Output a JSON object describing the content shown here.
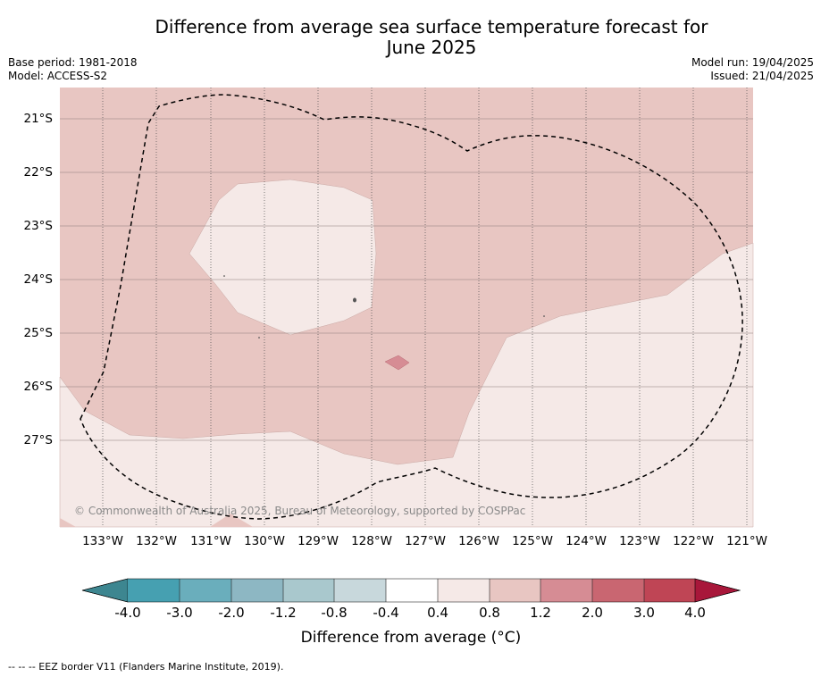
{
  "title_line1": "Difference from average sea surface temperature forecast for",
  "title_line2": "June 2025",
  "meta_left": [
    "Base period: 1981-2018",
    "Model: ACCESS-S2"
  ],
  "meta_right": [
    "Model run: 19/04/2025",
    "Issued: 21/04/2025"
  ],
  "latitude_labels": [
    "21°S",
    "22°S",
    "23°S",
    "24°S",
    "25°S",
    "26°S",
    "27°S"
  ],
  "longitude_labels": [
    "133°W",
    "132°W",
    "131°W",
    "130°W",
    "129°W",
    "128°W",
    "127°W",
    "126°W",
    "125°W",
    "124°W",
    "123°W",
    "122°W",
    "121°W"
  ],
  "copyright": "© Commonwealth of Australia 2025, Bureau of Meteorology, supported by COSPPac",
  "colorbar": {
    "label": "Difference from average (°C)",
    "ticks": [
      "-4.0",
      "-3.0",
      "-2.0",
      "-1.2",
      "-0.8",
      "-0.4",
      "0.4",
      "0.8",
      "1.2",
      "2.0",
      "3.0",
      "4.0"
    ],
    "colors": [
      "#3d8690",
      "#46a0b1",
      "#6aaebc",
      "#8db7c3",
      "#a9c8cd",
      "#c8d8dc",
      "#ffffff",
      "#f5e9e7",
      "#e8c6c2",
      "#d68c94",
      "#c96671",
      "#bf4555",
      "#a8173a"
    ]
  },
  "footnote": "--  --  -- EEZ border V11 (Flanders Marine Institute, 2019)."
}
